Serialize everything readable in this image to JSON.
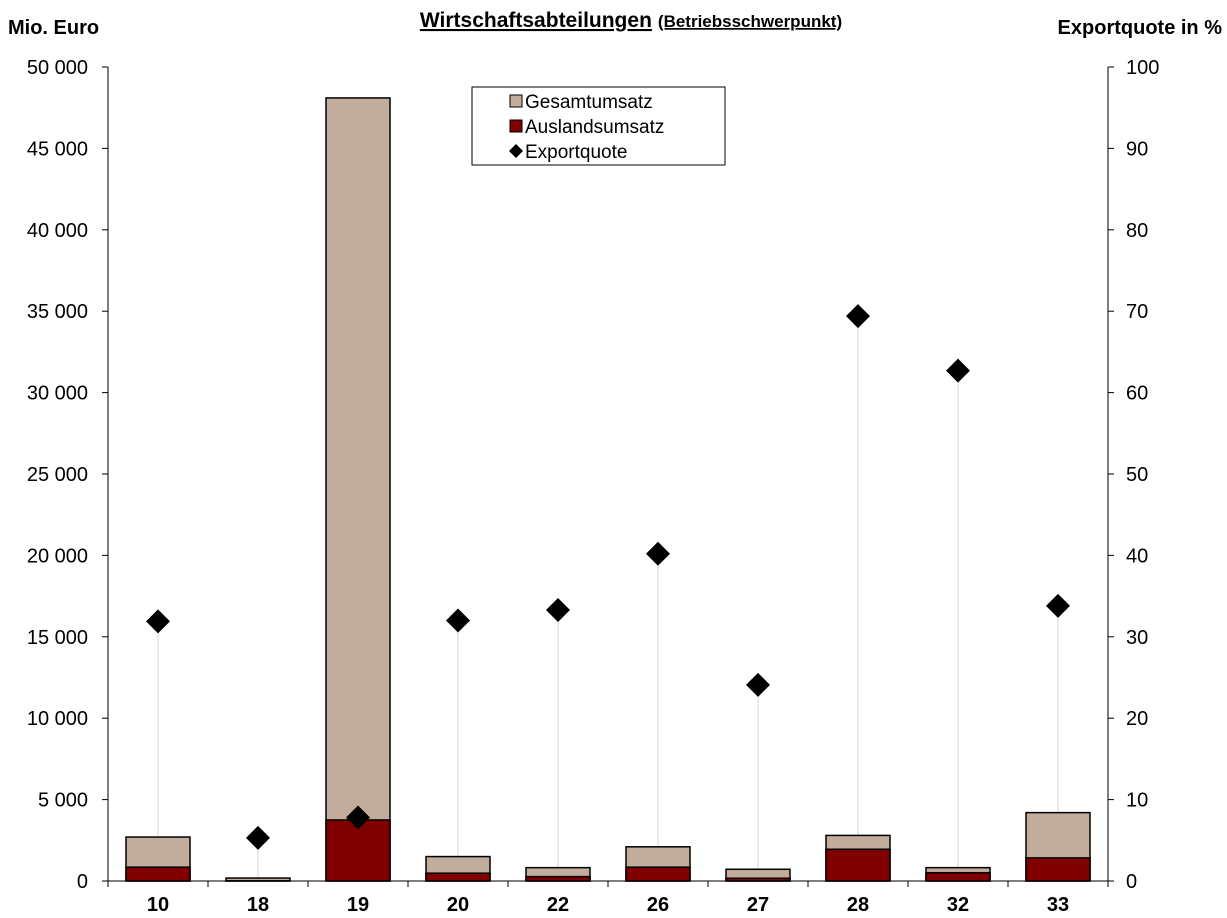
{
  "chart_data": {
    "type": "bar",
    "title_main": "Wirtschaftsabteilungen",
    "title_sub": "(Betriebsschwerpunkt)",
    "ylabel_left": "Mio.  Euro",
    "ylabel_right": "Exportquote in %",
    "categories": [
      "10",
      "18",
      "19",
      "20",
      "22",
      "26",
      "27",
      "28",
      "32",
      "33"
    ],
    "ylim_left": [
      0,
      50000
    ],
    "ylim_right": [
      0,
      100
    ],
    "left_ticks": [
      "0",
      "5 000",
      "10 000",
      "15 000",
      "20 000",
      "25 000",
      "30 000",
      "35 000",
      "40 000",
      "45 000",
      "50 000"
    ],
    "right_ticks": [
      "0",
      "10",
      "20",
      "30",
      "40",
      "50",
      "60",
      "70",
      "80",
      "90",
      "100"
    ],
    "series": [
      {
        "name": "Gesamtumsatz",
        "axis": "left",
        "kind": "bar",
        "color": "#c2ad9c",
        "values": [
          2700,
          180,
          48100,
          1500,
          820,
          2100,
          720,
          2800,
          820,
          4200
        ]
      },
      {
        "name": "Auslandsumsatz",
        "axis": "left",
        "kind": "bar",
        "color": "#800000",
        "values": [
          850,
          10,
          3750,
          480,
          270,
          850,
          170,
          1950,
          510,
          1420
        ]
      },
      {
        "name": "Exportquote",
        "axis": "right",
        "kind": "scatter",
        "marker": "diamond",
        "color": "#000000",
        "values": [
          31.9,
          5.3,
          7.8,
          32.0,
          33.3,
          40.2,
          24.1,
          69.4,
          62.7,
          33.8
        ]
      }
    ],
    "legend_position": "top-center",
    "grid": false
  }
}
